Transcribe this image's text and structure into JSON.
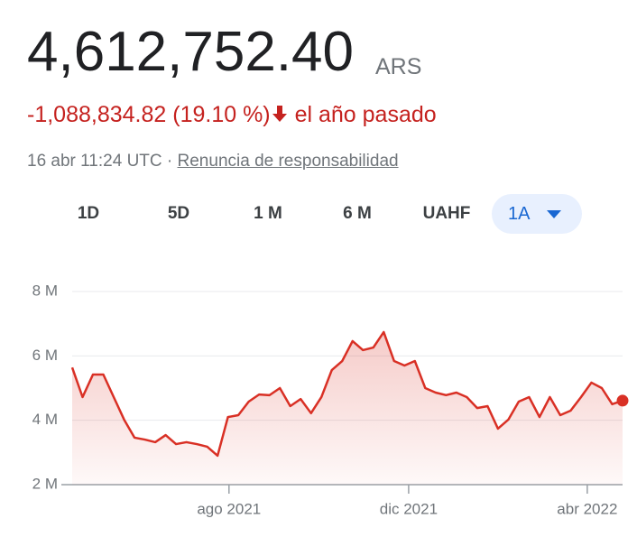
{
  "header": {
    "price": "4,612,752.40",
    "currency": "ARS",
    "change": "-1,088,834.82",
    "change_pct": "(19.10 %)",
    "period": "el año pasado",
    "timestamp": "16 abr 11:24 UTC",
    "separator": "·",
    "disclaimer": "Renuncia de responsabilidad"
  },
  "tabs": [
    "1D",
    "5D",
    "1 M",
    "6 M",
    "UAHF",
    "1A"
  ],
  "chart_data": {
    "type": "line",
    "color": "#d93025",
    "grid": true,
    "values": [
      5.64,
      4.72,
      5.42,
      5.42,
      4.72,
      4.02,
      3.46,
      3.4,
      3.32,
      3.54,
      3.26,
      3.32,
      3.26,
      3.18,
      2.9,
      4.1,
      4.16,
      4.58,
      4.8,
      4.78,
      5.0,
      4.44,
      4.66,
      4.22,
      4.72,
      5.56,
      5.84,
      6.46,
      6.18,
      6.26,
      6.74,
      5.84,
      5.7,
      5.84,
      5.0,
      4.86,
      4.78,
      4.86,
      4.72,
      4.38,
      4.44,
      3.74,
      4.02,
      4.58,
      4.72,
      4.1,
      4.72,
      4.16,
      4.3,
      4.72,
      5.17,
      5.0,
      4.5,
      4.61
    ],
    "xlim": [
      0,
      53
    ],
    "xticks": [
      {
        "value": 15.1,
        "label": "ago 2021"
      },
      {
        "value": 32.4,
        "label": "dic 2021"
      },
      {
        "value": 49.6,
        "label": "abr 2022"
      }
    ],
    "ylim": [
      2,
      8
    ],
    "yticks": [
      {
        "value": 2,
        "label": "2 M"
      },
      {
        "value": 4,
        "label": "4 M"
      },
      {
        "value": 6,
        "label": "6 M"
      },
      {
        "value": 8,
        "label": "8 M"
      }
    ]
  }
}
